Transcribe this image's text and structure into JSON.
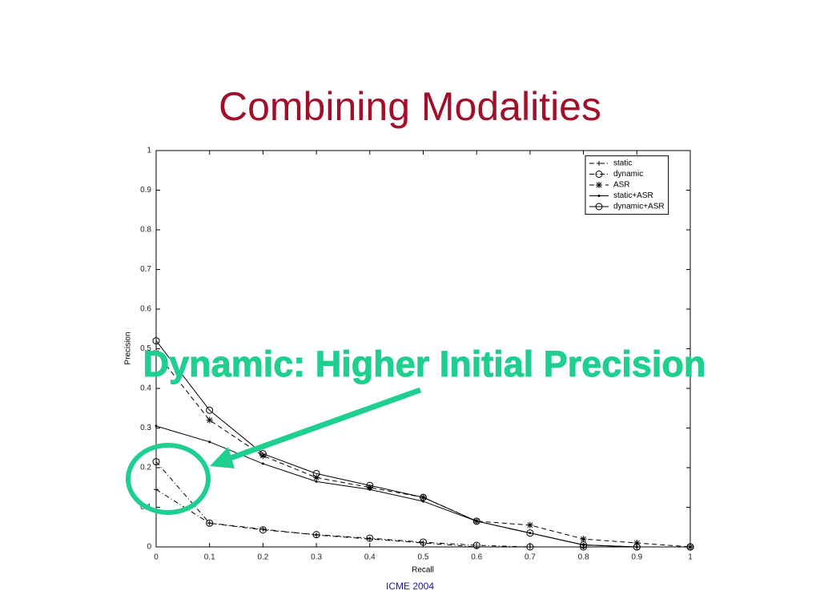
{
  "slide": {
    "title": "Combining Modalities",
    "footer": "ICME 2004"
  },
  "chart_data": {
    "type": "line",
    "xlabel": "Recall",
    "ylabel": "Precision",
    "annotation": "Dynamic: Higher Initial Precision",
    "x": [
      0,
      0.1,
      0.2,
      0.3,
      0.4,
      0.5,
      0.6,
      0.7,
      0.8,
      0.9,
      1
    ],
    "xlim": [
      0,
      1
    ],
    "ylim": [
      0,
      1
    ],
    "xticks": [
      0,
      0.1,
      0.2,
      0.3,
      0.4,
      0.5,
      0.6,
      0.7,
      0.8,
      0.9,
      1
    ],
    "yticks": [
      0,
      0.1,
      0.2,
      0.3,
      0.4,
      0.5,
      0.6,
      0.7,
      0.8,
      0.9,
      1
    ],
    "grid": false,
    "legend": "upper right",
    "series": [
      {
        "name": "static",
        "color": "#000000",
        "dash": "6 3 1 3",
        "marker": "plus",
        "values": [
          0.145,
          0.06,
          0.045,
          0.03,
          0.02,
          0.01,
          0.0,
          0.0,
          0.0,
          0.0,
          0.0
        ]
      },
      {
        "name": "dynamic",
        "color": "#000000",
        "dash": "6 3 1 3",
        "marker": "circle",
        "values": [
          0.215,
          0.06,
          0.043,
          0.031,
          0.022,
          0.012,
          0.004,
          0.0,
          0.0,
          0.0,
          0.0
        ]
      },
      {
        "name": "ASR",
        "color": "#000000",
        "dash": "6 4",
        "marker": "star",
        "values": [
          0.49,
          0.32,
          0.23,
          0.175,
          0.15,
          0.125,
          0.065,
          0.055,
          0.02,
          0.01,
          0.0
        ]
      },
      {
        "name": "static+ASR",
        "color": "#000000",
        "dash": "none",
        "marker": "dot",
        "values": [
          0.305,
          0.265,
          0.21,
          0.165,
          0.145,
          0.115,
          0.065,
          0.035,
          0.005,
          0.0,
          0.0
        ]
      },
      {
        "name": "dynamic+ASR",
        "color": "#000000",
        "dash": "none",
        "marker": "circle",
        "values": [
          0.52,
          0.345,
          0.235,
          0.185,
          0.155,
          0.125,
          0.065,
          0.035,
          0.005,
          0.0,
          0.0
        ]
      }
    ]
  }
}
